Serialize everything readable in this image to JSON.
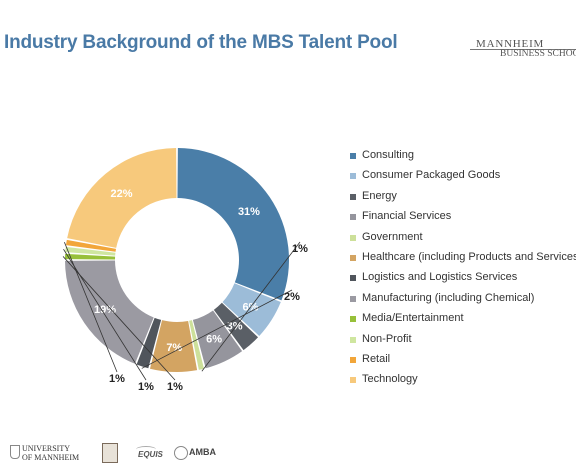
{
  "slide": {
    "title": "Industry Background of the MBS Talent Pool"
  },
  "brand": {
    "line1": "MANNHEIM",
    "line2": "BUSINESS SCHOOL"
  },
  "footer": {
    "logos": [
      {
        "name": "university-of-mannheim-logo",
        "lines": [
          "UNIVERSITY",
          "OF MANNHEIM"
        ]
      },
      {
        "name": "aacsb-logo"
      },
      {
        "name": "equis-logo",
        "text": "EQUIS"
      },
      {
        "name": "amba-logo",
        "text": "AMBA"
      }
    ]
  },
  "chart_data": {
    "type": "donut",
    "title": "",
    "legend_position": "right",
    "slices": [
      {
        "label": "Consulting",
        "value": 31,
        "display": "31%",
        "color": "#4a7ea8"
      },
      {
        "label": "Consumer Packaged Goods",
        "value": 6,
        "display": "6%",
        "color": "#9cbcd8"
      },
      {
        "label": "Energy",
        "value": 3,
        "display": "3%",
        "color": "#5a5f66"
      },
      {
        "label": "Financial Services",
        "value": 6,
        "display": "6%",
        "color": "#95959d"
      },
      {
        "label": "Government",
        "value": 1,
        "display": "1%",
        "color": "#cde09a"
      },
      {
        "label": "Healthcare (including Products and Services)",
        "value": 7,
        "display": "7%",
        "color": "#d3a462"
      },
      {
        "label": "Logistics and Logistics Services",
        "value": 2,
        "display": "2%",
        "color": "#50555c"
      },
      {
        "label": "Manufacturing (including Chemical)",
        "value": 19,
        "display": "19%",
        "color": "#9b9aa2"
      },
      {
        "label": "Media/Entertainment",
        "value": 1,
        "display": "1%",
        "color": "#97c03a"
      },
      {
        "label": "Non-Profit",
        "value": 1,
        "display": "1%",
        "color": "#cfe6a0"
      },
      {
        "label": "Retail",
        "value": 1,
        "display": "1%",
        "color": "#f2a63a"
      },
      {
        "label": "Technology",
        "value": 22,
        "display": "22%",
        "color": "#f7c97c"
      }
    ]
  }
}
